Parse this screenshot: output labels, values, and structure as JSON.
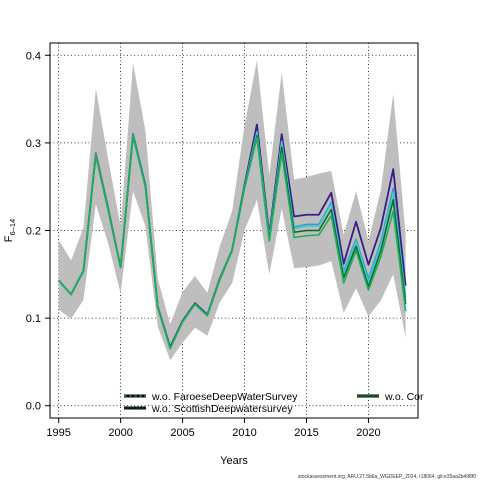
{
  "chart_data": {
    "type": "line",
    "xlabel": "Years",
    "ylabel_main": "F",
    "ylabel_sub": "6–14",
    "xlim": [
      1994.3,
      2024.0
    ],
    "ylim": [
      -0.014,
      0.414
    ],
    "x_ticks": [
      1995,
      2000,
      2005,
      2010,
      2015,
      2020
    ],
    "y_ticks": [
      0.0,
      0.1,
      0.2,
      0.3,
      0.4
    ],
    "y_tick_labels": [
      "0.0",
      "0.1",
      "0.2",
      "0.3",
      "0.4"
    ],
    "grid": true,
    "x": [
      1995,
      1996,
      1997,
      1998,
      1999,
      2000,
      2001,
      2002,
      2003,
      2004,
      2005,
      2006,
      2007,
      2008,
      2009,
      2010,
      2011,
      2012,
      2013,
      2014,
      2015,
      2016,
      2017,
      2018,
      2019,
      2020,
      2021,
      2022,
      2023
    ],
    "band": {
      "color": "#bebebe",
      "lower": [
        0.11,
        0.099,
        0.121,
        0.23,
        0.185,
        0.128,
        0.245,
        0.205,
        0.09,
        0.052,
        0.072,
        0.089,
        0.08,
        0.118,
        0.14,
        0.2,
        0.235,
        0.15,
        0.225,
        0.157,
        0.158,
        0.16,
        0.165,
        0.106,
        0.134,
        0.102,
        0.12,
        0.15,
        0.078
      ],
      "upper": [
        0.189,
        0.166,
        0.203,
        0.362,
        0.281,
        0.205,
        0.391,
        0.314,
        0.145,
        0.093,
        0.13,
        0.148,
        0.129,
        0.182,
        0.222,
        0.32,
        0.394,
        0.263,
        0.38,
        0.258,
        0.261,
        0.265,
        0.268,
        0.195,
        0.245,
        0.188,
        0.246,
        0.356,
        0.195
      ]
    },
    "series": [
      {
        "color": "#3b1d85",
        "width": 1.8,
        "values": [
          0.143,
          0.127,
          0.154,
          0.288,
          0.225,
          0.158,
          0.31,
          0.252,
          0.113,
          0.067,
          0.097,
          0.117,
          0.104,
          0.145,
          0.178,
          0.252,
          0.321,
          0.195,
          0.31,
          0.216,
          0.218,
          0.218,
          0.243,
          0.162,
          0.21,
          0.161,
          0.203,
          0.27,
          0.137
        ]
      },
      {
        "color": "#2a9fce",
        "width": 1.6,
        "values": [
          0.143,
          0.127,
          0.154,
          0.287,
          0.224,
          0.158,
          0.309,
          0.251,
          0.112,
          0.066,
          0.096,
          0.116,
          0.103,
          0.144,
          0.178,
          0.25,
          0.313,
          0.192,
          0.302,
          0.204,
          0.207,
          0.207,
          0.232,
          0.153,
          0.19,
          0.145,
          0.187,
          0.248,
          0.124
        ]
      },
      {
        "color": "#46c8d2",
        "width": 1.6,
        "values": [
          0.143,
          0.127,
          0.154,
          0.287,
          0.224,
          0.158,
          0.309,
          0.251,
          0.112,
          0.066,
          0.096,
          0.116,
          0.103,
          0.144,
          0.178,
          0.25,
          0.312,
          0.191,
          0.301,
          0.202,
          0.205,
          0.205,
          0.23,
          0.15,
          0.187,
          0.141,
          0.183,
          0.243,
          0.12
        ]
      },
      {
        "color": "#0f6b2a",
        "width": 1.6,
        "values": [
          0.143,
          0.127,
          0.154,
          0.286,
          0.223,
          0.158,
          0.308,
          0.25,
          0.112,
          0.066,
          0.096,
          0.116,
          0.103,
          0.144,
          0.177,
          0.249,
          0.308,
          0.189,
          0.295,
          0.198,
          0.2,
          0.2,
          0.224,
          0.146,
          0.182,
          0.136,
          0.177,
          0.235,
          0.116
        ]
      },
      {
        "color": "#1db05a",
        "width": 1.6,
        "values": [
          0.143,
          0.127,
          0.154,
          0.286,
          0.223,
          0.158,
          0.308,
          0.25,
          0.112,
          0.065,
          0.096,
          0.116,
          0.103,
          0.144,
          0.177,
          0.248,
          0.306,
          0.188,
          0.288,
          0.192,
          0.194,
          0.195,
          0.217,
          0.14,
          0.177,
          0.132,
          0.17,
          0.222,
          0.108
        ]
      }
    ],
    "legend": [
      {
        "label": "w.o. FaroeseDeepWaterSurvey",
        "color": "#1a7a6e",
        "dash": "3,2"
      },
      {
        "label": "w.o. ScottishDeepwatersurvey",
        "color": "#0f4a3a",
        "dash": "1.5,1.5"
      },
      {
        "label": "w.o. Cor",
        "color": "#0f6b2a",
        "dash": ""
      }
    ],
    "footer": "stockassessment.org, ARU.27.5b6a_WGDEEP_2024, r18064, git:e35aa2b498f0"
  }
}
